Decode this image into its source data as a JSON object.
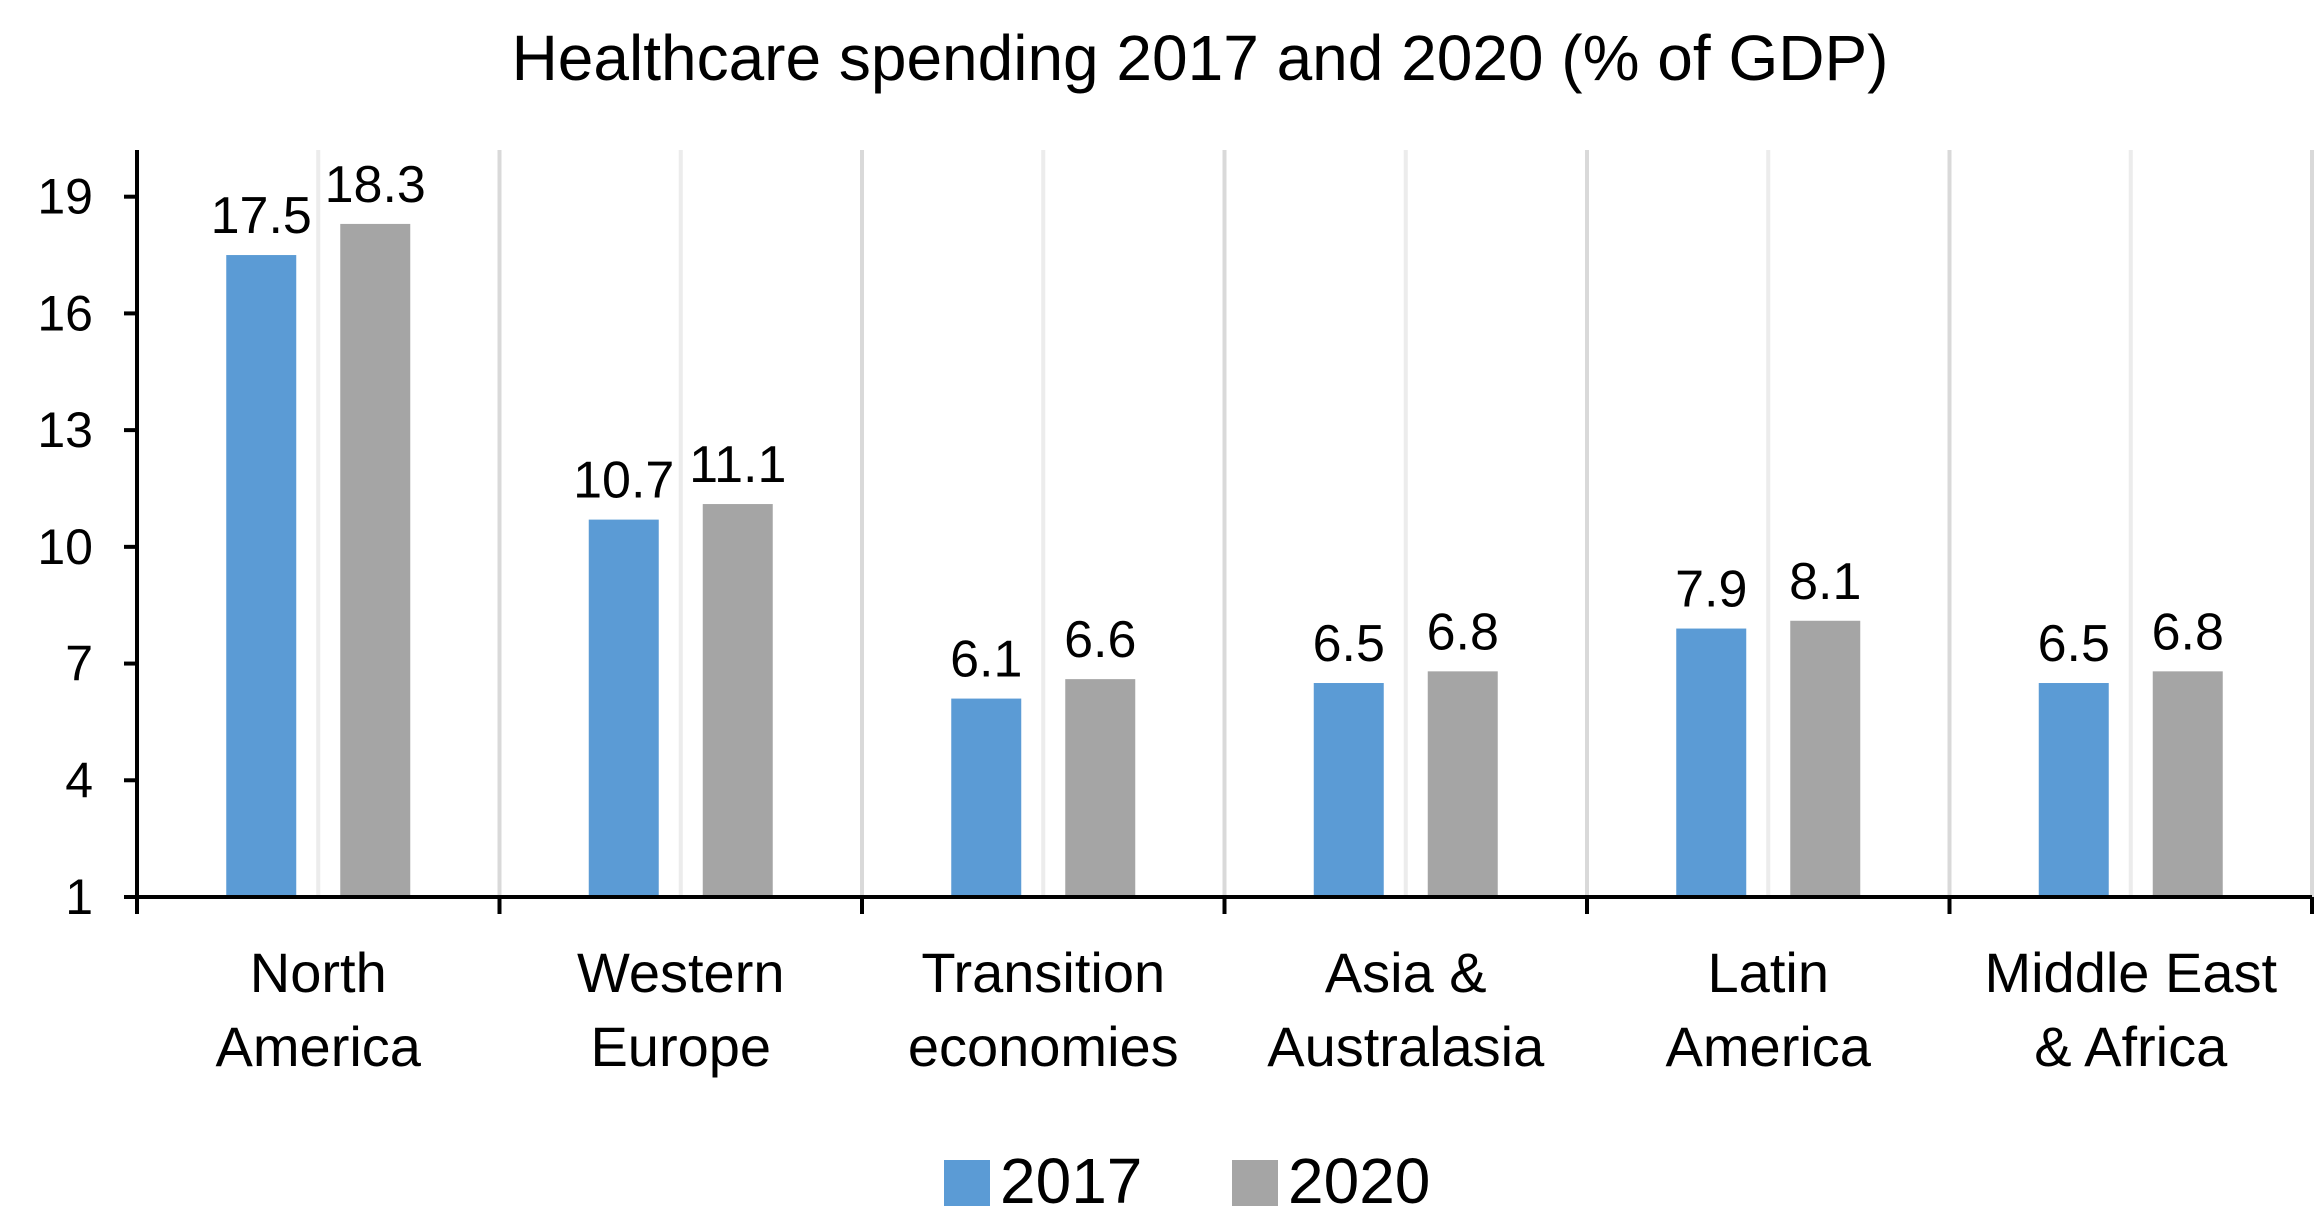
{
  "chart_data": {
    "type": "bar",
    "title": "Healthcare spending 2017 and 2020 (% of GDP)",
    "xlabel": "",
    "ylabel": "",
    "categories": [
      [
        "North",
        "America"
      ],
      [
        "Western",
        "Europe"
      ],
      [
        "Transition",
        "economies"
      ],
      [
        "Asia &",
        "Australasia"
      ],
      [
        "Latin",
        "America"
      ],
      [
        "Middle East",
        "& Africa"
      ]
    ],
    "series": [
      {
        "name": "2017",
        "color": "#5B9BD5",
        "values": [
          17.5,
          10.7,
          6.1,
          6.5,
          7.9,
          6.5
        ],
        "labels": [
          "17.5",
          "10.7",
          "6.1",
          "6.5",
          "7.9",
          "6.5"
        ]
      },
      {
        "name": "2020",
        "color": "#A5A5A5",
        "values": [
          18.3,
          11.1,
          6.6,
          6.8,
          8.1,
          6.8
        ],
        "labels": [
          "18.3",
          "11.1",
          "6.6",
          "6.8",
          "8.1",
          "6.8"
        ]
      }
    ],
    "yticks": [
      1,
      4,
      7,
      10,
      13,
      16,
      19
    ],
    "ytick_labels": [
      "1",
      "4",
      "7",
      "10",
      "13",
      "16",
      "19"
    ],
    "ylim": [
      1,
      20.2
    ],
    "grid": "vertical",
    "legend_position": "bottom-center"
  }
}
